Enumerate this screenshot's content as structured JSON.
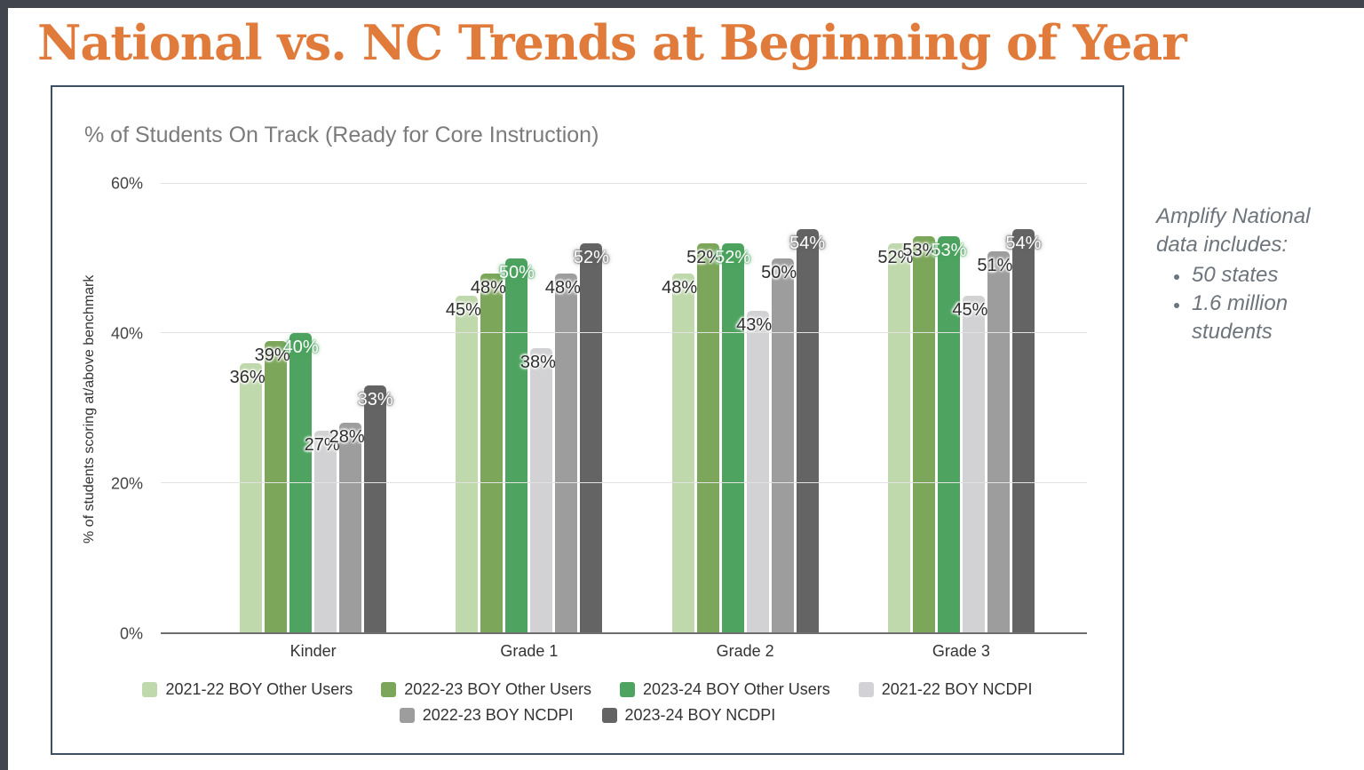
{
  "page": {
    "title": "National vs. NC Trends at Beginning of Year"
  },
  "chart_data": {
    "type": "bar",
    "title": "% of Students On Track (Ready for Core Instruction)",
    "ylabel": "% of students scoring at/above benchmark",
    "categories": [
      "Kinder",
      "Grade 1",
      "Grade 2",
      "Grade 3"
    ],
    "series": [
      {
        "name": "2021-22 BOY Other Users",
        "color": "#bfd8ac",
        "label_style": "dark",
        "values": [
          36,
          45,
          48,
          52
        ]
      },
      {
        "name": "2022-23 BOY Other Users",
        "color": "#7ca65a",
        "label_style": "dark",
        "values": [
          39,
          48,
          52,
          53
        ]
      },
      {
        "name": "2023-24 BOY Other Users",
        "color": "#4da35f",
        "label_style": "light",
        "values": [
          40,
          50,
          52,
          53
        ]
      },
      {
        "name": "2021-22 BOY NCDPI",
        "color": "#d2d2d4",
        "label_style": "dark",
        "values": [
          27,
          38,
          43,
          45
        ]
      },
      {
        "name": "2022-23 BOY NCDPI",
        "color": "#9d9d9d",
        "label_style": "dark",
        "values": [
          28,
          48,
          50,
          51
        ]
      },
      {
        "name": "2023-24 BOY NCDPI",
        "color": "#646464",
        "label_style": "light",
        "values": [
          33,
          52,
          54,
          54
        ]
      }
    ],
    "value_suffix": "%",
    "ylim": [
      0,
      60
    ],
    "yticks": [
      {
        "value": 0,
        "label": "0%"
      },
      {
        "value": 20,
        "label": "20%"
      },
      {
        "value": 40,
        "label": "40%"
      },
      {
        "value": 60,
        "label": "60%"
      }
    ],
    "grid": true,
    "legend_position": "bottom",
    "legend_rows": [
      4,
      2
    ]
  },
  "side_note": {
    "intro": "Amplify National data includes:",
    "bullets": [
      "50 states",
      "1.6 million students"
    ]
  },
  "theme": {
    "title_color": "#e07b3c",
    "frame_color": "#41454d",
    "chart_border_color": "#3d5063",
    "chart_title_color": "#7b7b7b",
    "axis_line_color": "#6f6f6f",
    "gridline_color": "#e2e2e2",
    "note_color": "#6e747b"
  }
}
